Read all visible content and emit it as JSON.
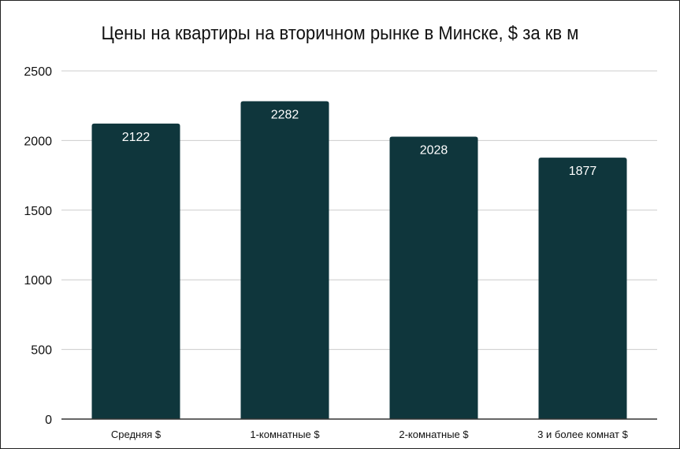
{
  "chart_data": {
    "type": "bar",
    "title": "Цены на квартиры на вторичном рынке в Минске, $ за кв м",
    "xlabel": "",
    "ylabel": "",
    "categories": [
      "Средняя $",
      "1-комнатные $",
      "2-комнатные $",
      "3 и более комнат $"
    ],
    "values": [
      2122,
      2282,
      2028,
      1877
    ],
    "data_labels": [
      "2122",
      "2282",
      "2028",
      "1877"
    ],
    "ylim": [
      0,
      2500
    ],
    "yticks": [
      0,
      500,
      1000,
      1500,
      2000,
      2500
    ],
    "ytick_labels": [
      "0",
      "500",
      "1000",
      "1500",
      "2000",
      "2500"
    ],
    "grid": true,
    "legend": "none",
    "colors": {
      "bar": "#0f363c",
      "grid": "#cccccc",
      "axis": "#333333"
    }
  }
}
